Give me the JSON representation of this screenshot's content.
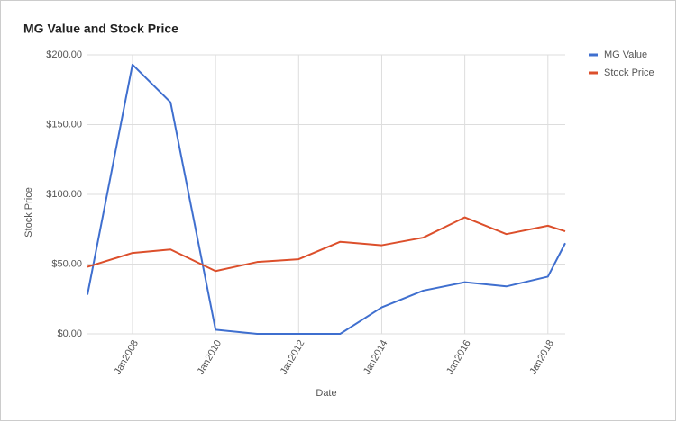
{
  "chart_data": {
    "type": "line",
    "title": "MG Value and Stock Price",
    "x_label": "Date",
    "y_label": "Stock Price",
    "x": [
      "2006-12",
      "2008-01",
      "2008-12",
      "2010-01",
      "2011-01",
      "2012-01",
      "2013-01",
      "2014-01",
      "2015-01",
      "2016-01",
      "2017-01",
      "2018-01",
      "2018-06"
    ],
    "series": [
      {
        "name": "MG Value",
        "color": "#3f6fcf",
        "values": [
          28,
          193,
          166,
          3,
          0,
          0,
          0,
          19,
          31,
          37,
          34,
          41,
          65
        ]
      },
      {
        "name": "Stock Price",
        "color": "#dc4f2b",
        "values": [
          48,
          58,
          60.5,
          45,
          51.5,
          53.5,
          66,
          63.5,
          69,
          83.5,
          71.5,
          77.5,
          73.5
        ]
      }
    ],
    "xlim": [
      "2006-12",
      "2018-06"
    ],
    "xticks": [
      {
        "value": "2008-01",
        "label": "Jan2008"
      },
      {
        "value": "2010-01",
        "label": "Jan2010"
      },
      {
        "value": "2012-01",
        "label": "Jan2012"
      },
      {
        "value": "2014-01",
        "label": "Jan2014"
      },
      {
        "value": "2016-01",
        "label": "Jan2016"
      },
      {
        "value": "2018-01",
        "label": "Jan2018"
      }
    ],
    "ylim": [
      0,
      200
    ],
    "yticks": [
      {
        "value": 0,
        "label": "$0.00"
      },
      {
        "value": 50,
        "label": "$50.00"
      },
      {
        "value": 100,
        "label": "$100.00"
      },
      {
        "value": 150,
        "label": "$150.00"
      },
      {
        "value": 200,
        "label": "$200.00"
      }
    ],
    "grid": true,
    "legend": "right"
  }
}
